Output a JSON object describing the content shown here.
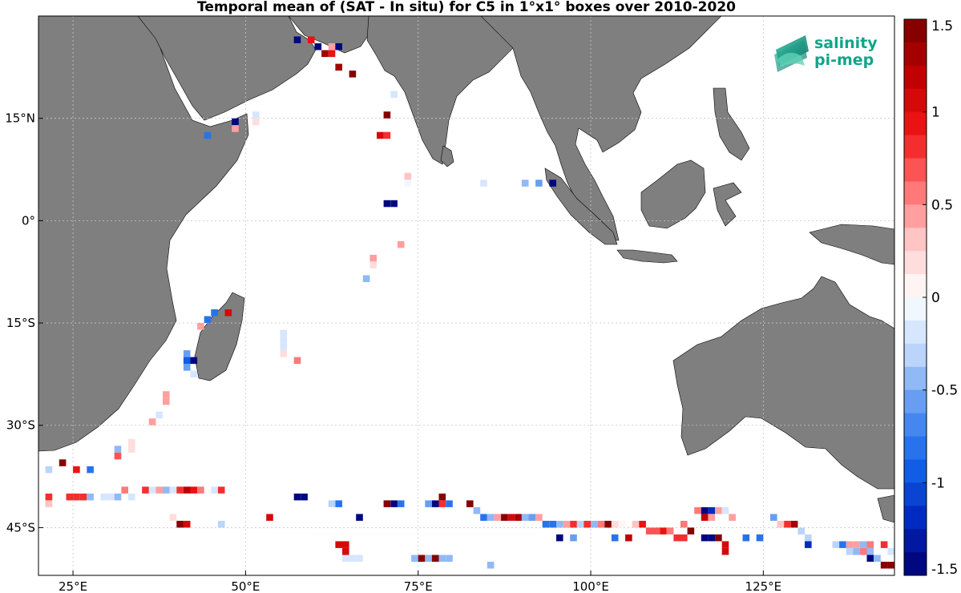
{
  "chart_data": {
    "type": "heatmap",
    "title": "Temporal mean of (SAT - In situ) for C5 in 1°x1° boxes over 2010-2020",
    "xlim": [
      20,
      144
    ],
    "ylim": [
      -52,
      30
    ],
    "x_ticks": [
      {
        "value": 25,
        "label": "25°E"
      },
      {
        "value": 50,
        "label": "50°E"
      },
      {
        "value": 75,
        "label": "75°E"
      },
      {
        "value": 100,
        "label": "100°E"
      },
      {
        "value": 125,
        "label": "125°E"
      }
    ],
    "y_ticks": [
      {
        "value": 15,
        "label": "15°N"
      },
      {
        "value": 0,
        "label": "0°"
      },
      {
        "value": -15,
        "label": "15°S"
      },
      {
        "value": -30,
        "label": "30°S"
      },
      {
        "value": -45,
        "label": "45°S"
      }
    ],
    "grid": true,
    "colorbar": {
      "min": -1.5,
      "max": 1.5,
      "levels": 24,
      "tick_labels": [
        "1.5",
        "1",
        "0.5",
        "0",
        "-0.5",
        "-1",
        "-1.5"
      ],
      "tick_values": [
        1.5,
        1,
        0.5,
        0,
        -0.5,
        -1,
        -1.5
      ]
    },
    "points": [
      {
        "lon": 57.5,
        "lat": 26.5,
        "value": -1.4
      },
      {
        "lon": 59.5,
        "lat": 26.5,
        "value": 0.9
      },
      {
        "lon": 60.5,
        "lat": 25.5,
        "value": -1.4
      },
      {
        "lon": 62.5,
        "lat": 25.5,
        "value": 0.4
      },
      {
        "lon": 63.5,
        "lat": 25.5,
        "value": -1.4
      },
      {
        "lon": 61.5,
        "lat": 24.5,
        "value": 1.3
      },
      {
        "lon": 62.5,
        "lat": 24.5,
        "value": 0.9
      },
      {
        "lon": 63.5,
        "lat": 22.5,
        "value": 1.3
      },
      {
        "lon": 65.5,
        "lat": 21.5,
        "value": 1.4
      },
      {
        "lon": 71.5,
        "lat": 18.5,
        "value": -0.15
      },
      {
        "lon": 70.5,
        "lat": 15.5,
        "value": 1.4
      },
      {
        "lon": 48.5,
        "lat": 14.5,
        "value": -1.4
      },
      {
        "lon": 51.5,
        "lat": 15.5,
        "value": -0.15
      },
      {
        "lon": 51.5,
        "lat": 14.5,
        "value": 0.2
      },
      {
        "lon": 48.5,
        "lat": 13.5,
        "value": 0.4
      },
      {
        "lon": 44.5,
        "lat": 12.5,
        "value": -0.8
      },
      {
        "lon": 69.5,
        "lat": 12.5,
        "value": 1.0
      },
      {
        "lon": 70.5,
        "lat": 12.5,
        "value": 0.8
      },
      {
        "lon": 73.5,
        "lat": 6.5,
        "value": 0.35
      },
      {
        "lon": 73.5,
        "lat": 5.5,
        "value": -0.1
      },
      {
        "lon": 84.5,
        "lat": 5.5,
        "value": -0.2
      },
      {
        "lon": 90.5,
        "lat": 5.5,
        "value": -0.45
      },
      {
        "lon": 92.5,
        "lat": 5.5,
        "value": -0.6
      },
      {
        "lon": 94.5,
        "lat": 5.5,
        "value": -1.4
      },
      {
        "lon": 70.5,
        "lat": 2.5,
        "value": -1.4
      },
      {
        "lon": 71.5,
        "lat": 2.5,
        "value": -1.4
      },
      {
        "lon": 72.5,
        "lat": -3.5,
        "value": 0.4
      },
      {
        "lon": 68.5,
        "lat": -5.5,
        "value": 0.4
      },
      {
        "lon": 68.5,
        "lat": -6.5,
        "value": 0.2
      },
      {
        "lon": 67.5,
        "lat": -8.5,
        "value": -0.45
      },
      {
        "lon": 45.5,
        "lat": -13.5,
        "value": -0.8
      },
      {
        "lon": 47.5,
        "lat": -13.5,
        "value": 1.0
      },
      {
        "lon": 44.5,
        "lat": -14.5,
        "value": -0.8
      },
      {
        "lon": 43.5,
        "lat": -15.5,
        "value": 0.4
      },
      {
        "lon": 55.5,
        "lat": -16.5,
        "value": -0.2
      },
      {
        "lon": 55.5,
        "lat": -17.5,
        "value": -0.2
      },
      {
        "lon": 55.5,
        "lat": -18.5,
        "value": -0.2
      },
      {
        "lon": 55.5,
        "lat": -19.5,
        "value": 0.2
      },
      {
        "lon": 57.5,
        "lat": -20.5,
        "value": 0.6
      },
      {
        "lon": 41.5,
        "lat": -19.5,
        "value": -0.6
      },
      {
        "lon": 41.5,
        "lat": -20.5,
        "value": -0.9
      },
      {
        "lon": 41.5,
        "lat": -21.5,
        "value": -0.6
      },
      {
        "lon": 42.5,
        "lat": -20.5,
        "value": -1.4
      },
      {
        "lon": 42.5,
        "lat": -22.5,
        "value": -0.2
      },
      {
        "lon": 38.5,
        "lat": -25.5,
        "value": 0.4
      },
      {
        "lon": 38.5,
        "lat": -26.5,
        "value": 0.4
      },
      {
        "lon": 37.5,
        "lat": -28.5,
        "value": -0.15
      },
      {
        "lon": 36.5,
        "lat": -29.5,
        "value": 0.4
      },
      {
        "lon": 33.5,
        "lat": -32.5,
        "value": 0.15
      },
      {
        "lon": 33.5,
        "lat": -33.5,
        "value": 0.15
      },
      {
        "lon": 31.5,
        "lat": -33.5,
        "value": -0.5
      },
      {
        "lon": 31.5,
        "lat": -34.5,
        "value": 0.7
      },
      {
        "lon": 23.5,
        "lat": -35.5,
        "value": 1.4
      },
      {
        "lon": 25.5,
        "lat": -36.5,
        "value": 0.9
      },
      {
        "lon": 27.5,
        "lat": -36.5,
        "value": -0.8
      },
      {
        "lon": 21.5,
        "lat": -36.5,
        "value": -0.3
      },
      {
        "lon": 21.5,
        "lat": -40.5,
        "value": 0.8
      },
      {
        "lon": 21.5,
        "lat": -41.5,
        "value": 0.3
      },
      {
        "lon": 24.5,
        "lat": -40.5,
        "value": 0.8
      },
      {
        "lon": 25.5,
        "lat": -40.5,
        "value": 0.8
      },
      {
        "lon": 26.5,
        "lat": -40.5,
        "value": 0.8
      },
      {
        "lon": 27.5,
        "lat": -40.5,
        "value": -0.5
      },
      {
        "lon": 29.5,
        "lat": -40.5,
        "value": -0.25
      },
      {
        "lon": 30.5,
        "lat": -40.5,
        "value": -0.25
      },
      {
        "lon": 31.5,
        "lat": -40.5,
        "value": -0.5
      },
      {
        "lon": 32.5,
        "lat": -39.5,
        "value": 0.5
      },
      {
        "lon": 33.5,
        "lat": -40.5,
        "value": -0.15
      },
      {
        "lon": 35.5,
        "lat": -39.5,
        "value": 0.8
      },
      {
        "lon": 36.5,
        "lat": -39.5,
        "value": -0.25
      },
      {
        "lon": 37.5,
        "lat": -39.5,
        "value": 0.4
      },
      {
        "lon": 38.5,
        "lat": -39.5,
        "value": -0.5
      },
      {
        "lon": 39.5,
        "lat": -39.5,
        "value": -0.15
      },
      {
        "lon": 40.5,
        "lat": -39.5,
        "value": 0.8
      },
      {
        "lon": 41.5,
        "lat": -39.5,
        "value": 1.2
      },
      {
        "lon": 42.5,
        "lat": -39.5,
        "value": 0.9
      },
      {
        "lon": 43.5,
        "lat": -39.5,
        "value": 0.6
      },
      {
        "lon": 45.5,
        "lat": -39.5,
        "value": -0.15
      },
      {
        "lon": 46.5,
        "lat": -39.5,
        "value": 0.8
      },
      {
        "lon": 39.5,
        "lat": -43.5,
        "value": 0.15
      },
      {
        "lon": 40.5,
        "lat": -44.5,
        "value": 1.4
      },
      {
        "lon": 41.5,
        "lat": -44.5,
        "value": 1.1
      },
      {
        "lon": 46.5,
        "lat": -44.5,
        "value": -0.3
      },
      {
        "lon": 53.5,
        "lat": -43.5,
        "value": 1.0
      },
      {
        "lon": 57.5,
        "lat": -40.5,
        "value": -1.4
      },
      {
        "lon": 58.5,
        "lat": -40.5,
        "value": -1.4
      },
      {
        "lon": 62.5,
        "lat": -41.5,
        "value": -0.3
      },
      {
        "lon": 63.5,
        "lat": -41.5,
        "value": -0.8
      },
      {
        "lon": 66.5,
        "lat": -43.5,
        "value": -1.4
      },
      {
        "lon": 70.5,
        "lat": -41.5,
        "value": 1.4
      },
      {
        "lon": 71.5,
        "lat": -41.5,
        "value": -1.4
      },
      {
        "lon": 72.5,
        "lat": -41.5,
        "value": -0.8
      },
      {
        "lon": 76.5,
        "lat": -41.5,
        "value": -0.6
      },
      {
        "lon": 77.5,
        "lat": -41.5,
        "value": -1.4
      },
      {
        "lon": 78.5,
        "lat": -40.5,
        "value": 1.4
      },
      {
        "lon": 78.5,
        "lat": -41.5,
        "value": 0.8
      },
      {
        "lon": 79.5,
        "lat": -41.5,
        "value": -0.8
      },
      {
        "lon": 82.5,
        "lat": -41.5,
        "value": 1.4
      },
      {
        "lon": 83.5,
        "lat": -42.5,
        "value": -0.5
      },
      {
        "lon": 84.5,
        "lat": -43.5,
        "value": -0.8
      },
      {
        "lon": 85.5,
        "lat": -43.5,
        "value": -0.5
      },
      {
        "lon": 86.5,
        "lat": -43.5,
        "value": 0.4
      },
      {
        "lon": 87.5,
        "lat": -43.5,
        "value": 1.4
      },
      {
        "lon": 88.5,
        "lat": -43.5,
        "value": 1.0
      },
      {
        "lon": 89.5,
        "lat": -43.5,
        "value": 1.3
      },
      {
        "lon": 90.5,
        "lat": -43.5,
        "value": -0.5
      },
      {
        "lon": 91.5,
        "lat": -43.5,
        "value": -0.6
      },
      {
        "lon": 92.5,
        "lat": -43.5,
        "value": 0.4
      },
      {
        "lon": 93.5,
        "lat": -44.5,
        "value": -0.8
      },
      {
        "lon": 94.5,
        "lat": -44.5,
        "value": -0.8
      },
      {
        "lon": 95.5,
        "lat": -44.5,
        "value": -0.5
      },
      {
        "lon": 96.5,
        "lat": -44.5,
        "value": 0.4
      },
      {
        "lon": 97.5,
        "lat": -44.5,
        "value": 0.8
      },
      {
        "lon": 98.5,
        "lat": -44.5,
        "value": -0.3
      },
      {
        "lon": 99.5,
        "lat": -44.5,
        "value": 0.8
      },
      {
        "lon": 100.5,
        "lat": -44.5,
        "value": -0.4
      },
      {
        "lon": 101.5,
        "lat": -44.5,
        "value": 0.6
      },
      {
        "lon": 102.5,
        "lat": -44.5,
        "value": 1.4
      },
      {
        "lon": 103.5,
        "lat": -44.5,
        "value": 0.2
      },
      {
        "lon": 104.5,
        "lat": -44.5,
        "value": 0.1
      },
      {
        "lon": 106.5,
        "lat": -44.5,
        "value": 0.3
      },
      {
        "lon": 107.5,
        "lat": -44.5,
        "value": 0.9
      },
      {
        "lon": 108.5,
        "lat": -45.5,
        "value": 0.7
      },
      {
        "lon": 109.5,
        "lat": -45.5,
        "value": 0.7
      },
      {
        "lon": 110.5,
        "lat": -45.5,
        "value": 0.9
      },
      {
        "lon": 111.5,
        "lat": -45.5,
        "value": 0.6
      },
      {
        "lon": 113.5,
        "lat": -44.5,
        "value": 0.6
      },
      {
        "lon": 114.5,
        "lat": -45.5,
        "value": 1.4
      },
      {
        "lon": 115.5,
        "lat": -42.5,
        "value": 0.5
      },
      {
        "lon": 116.5,
        "lat": -42.5,
        "value": -1.4
      },
      {
        "lon": 117.5,
        "lat": -42.5,
        "value": -1.2
      },
      {
        "lon": 118.5,
        "lat": -42.5,
        "value": 0.4
      },
      {
        "lon": 119.5,
        "lat": -42.5,
        "value": -0.2
      },
      {
        "lon": 116.5,
        "lat": -43.5,
        "value": 1.2
      },
      {
        "lon": 117.5,
        "lat": -43.5,
        "value": 0.4
      },
      {
        "lon": 120.5,
        "lat": -43.5,
        "value": 0.4
      },
      {
        "lon": 126.5,
        "lat": -43.5,
        "value": -0.6
      },
      {
        "lon": 127.5,
        "lat": -44.5,
        "value": 0.3
      },
      {
        "lon": 128.5,
        "lat": -44.5,
        "value": 0.8
      },
      {
        "lon": 129.5,
        "lat": -44.5,
        "value": 1.3
      },
      {
        "lon": 130.5,
        "lat": -45.5,
        "value": -0.3
      },
      {
        "lon": 95.5,
        "lat": -46.5,
        "value": -1.4
      },
      {
        "lon": 97.5,
        "lat": -46.5,
        "value": -0.6
      },
      {
        "lon": 103.5,
        "lat": -46.5,
        "value": -0.8
      },
      {
        "lon": 105.5,
        "lat": -46.5,
        "value": 1.2
      },
      {
        "lon": 112.5,
        "lat": -46.5,
        "value": 0.8
      },
      {
        "lon": 113.5,
        "lat": -46.5,
        "value": 0.8
      },
      {
        "lon": 116.5,
        "lat": -46.5,
        "value": -1.4
      },
      {
        "lon": 117.5,
        "lat": -46.5,
        "value": -1.4
      },
      {
        "lon": 118.5,
        "lat": -46.5,
        "value": 1.4
      },
      {
        "lon": 122.5,
        "lat": -46.5,
        "value": -0.8
      },
      {
        "lon": 124.5,
        "lat": -46.5,
        "value": -0.8
      },
      {
        "lon": 131.5,
        "lat": -46.5,
        "value": -0.3
      },
      {
        "lon": 131.5,
        "lat": -47.5,
        "value": -1.2
      },
      {
        "lon": 119.5,
        "lat": -47.5,
        "value": 1.0
      },
      {
        "lon": 119.5,
        "lat": -48.5,
        "value": 1.0
      },
      {
        "lon": 63.5,
        "lat": -47.5,
        "value": 1.0
      },
      {
        "lon": 64.5,
        "lat": -47.5,
        "value": 1.0
      },
      {
        "lon": 64.5,
        "lat": -48.5,
        "value": 1.0
      },
      {
        "lon": 64.5,
        "lat": -49.5,
        "value": -0.2
      },
      {
        "lon": 65.5,
        "lat": -49.5,
        "value": -0.2
      },
      {
        "lon": 66.5,
        "lat": -49.5,
        "value": -0.2
      },
      {
        "lon": 74.5,
        "lat": -49.5,
        "value": -0.5
      },
      {
        "lon": 75.5,
        "lat": -49.5,
        "value": 1.4
      },
      {
        "lon": 76.5,
        "lat": -49.5,
        "value": -0.5
      },
      {
        "lon": 77.5,
        "lat": -49.5,
        "value": 1.4
      },
      {
        "lon": 78.5,
        "lat": -49.5,
        "value": -0.5
      },
      {
        "lon": 79.5,
        "lat": -49.5,
        "value": -0.5
      },
      {
        "lon": 85.5,
        "lat": -50.5,
        "value": -0.5
      },
      {
        "lon": 135.5,
        "lat": -47.5,
        "value": -0.3
      },
      {
        "lon": 136.5,
        "lat": -47.5,
        "value": -0.8
      },
      {
        "lon": 137.5,
        "lat": -47.5,
        "value": 0.4
      },
      {
        "lon": 138.5,
        "lat": -47.5,
        "value": 0.4
      },
      {
        "lon": 139.5,
        "lat": -47.5,
        "value": -0.4
      },
      {
        "lon": 140.5,
        "lat": -47.5,
        "value": 0.6
      },
      {
        "lon": 142.5,
        "lat": -47.5,
        "value": 0.8
      },
      {
        "lon": 137.5,
        "lat": -48.5,
        "value": -0.3
      },
      {
        "lon": 138.5,
        "lat": -48.5,
        "value": -0.5
      },
      {
        "lon": 139.5,
        "lat": -48.5,
        "value": 0.6
      },
      {
        "lon": 140.5,
        "lat": -48.5,
        "value": -0.4
      },
      {
        "lon": 143.5,
        "lat": -48.5,
        "value": -0.2
      },
      {
        "lon": 140.5,
        "lat": -49.5,
        "value": -1.4
      },
      {
        "lon": 141.5,
        "lat": -49.5,
        "value": -0.5
      },
      {
        "lon": 142.5,
        "lat": -50.5,
        "value": 1.4
      },
      {
        "lon": 143.5,
        "lat": -50.5,
        "value": 1.4
      }
    ]
  },
  "logo": {
    "line1": "salinity",
    "line2": "pi-mep"
  },
  "colors": {
    "land": "#7f7f7f",
    "ocean": "#ffffff",
    "grid": "#c8c8c8",
    "logo_text": "#13a48a"
  }
}
